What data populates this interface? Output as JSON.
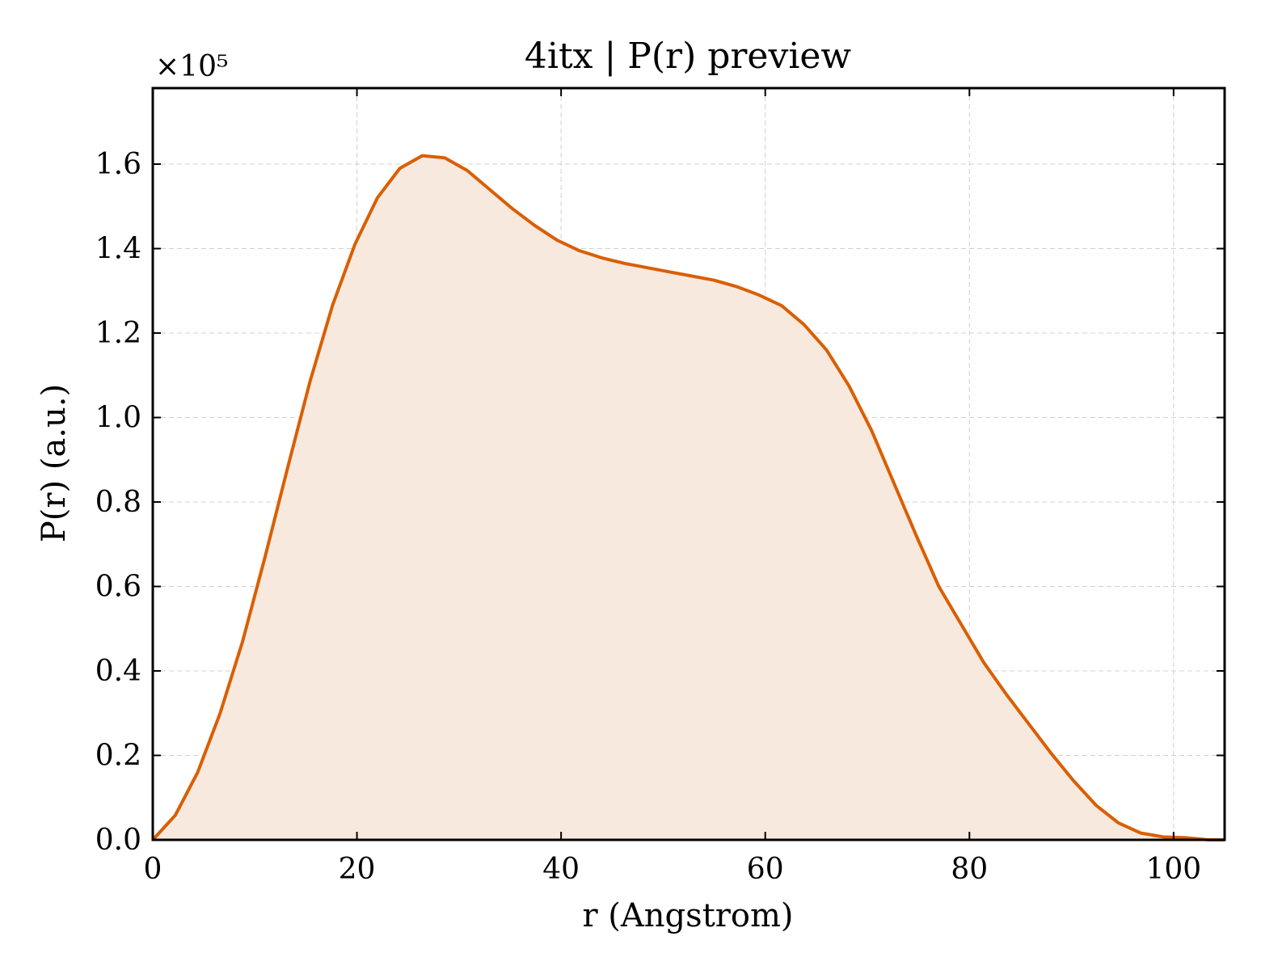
{
  "chart_data": {
    "type": "area",
    "title": "4itx | P(r) preview",
    "xlabel": "r (Angstrom)",
    "ylabel": "P(r) (a.u.)",
    "y_scale_label": "×10⁵",
    "xlim": [
      0,
      105
    ],
    "ylim": [
      0,
      1.78
    ],
    "x_ticks": [
      0,
      20,
      40,
      60,
      80,
      100
    ],
    "y_ticks": [
      0.0,
      0.2,
      0.4,
      0.6,
      0.8,
      1.0,
      1.2,
      1.4,
      1.6
    ],
    "x_tick_labels": [
      "0",
      "20",
      "40",
      "60",
      "80",
      "100"
    ],
    "y_tick_labels": [
      "0.0",
      "0.2",
      "0.4",
      "0.6",
      "0.8",
      "1.0",
      "1.2",
      "1.4",
      "1.6"
    ],
    "grid": true,
    "colors": {
      "line": "#d95f02",
      "fill": "#f8e9df"
    },
    "series": [
      {
        "x": [
          0,
          2.2,
          4.4,
          6.6,
          8.8,
          11,
          13.2,
          15.4,
          17.6,
          19.8,
          22,
          24.2,
          26.4,
          28.6,
          30.8,
          33,
          35.2,
          37.4,
          39.6,
          41.8,
          44,
          46.2,
          48.4,
          50.6,
          52.8,
          55,
          57.2,
          59.4,
          61.6,
          63.8,
          66,
          68.2,
          70.4,
          72.6,
          74.8,
          77,
          79.2,
          81.4,
          83.6,
          85.8,
          88,
          90.2,
          92.4,
          94.6,
          96.8,
          99,
          101.2,
          103.4,
          105
        ],
        "values": [
          0,
          0.058,
          0.16,
          0.3,
          0.47,
          0.67,
          0.88,
          1.085,
          1.265,
          1.41,
          1.52,
          1.59,
          1.62,
          1.615,
          1.585,
          1.54,
          1.495,
          1.455,
          1.42,
          1.395,
          1.378,
          1.365,
          1.355,
          1.345,
          1.335,
          1.325,
          1.31,
          1.29,
          1.265,
          1.22,
          1.16,
          1.075,
          0.97,
          0.845,
          0.72,
          0.6,
          0.51,
          0.42,
          0.345,
          0.275,
          0.205,
          0.14,
          0.082,
          0.04,
          0.016,
          0.007,
          0.005,
          0.0,
          0.0
        ]
      }
    ]
  }
}
